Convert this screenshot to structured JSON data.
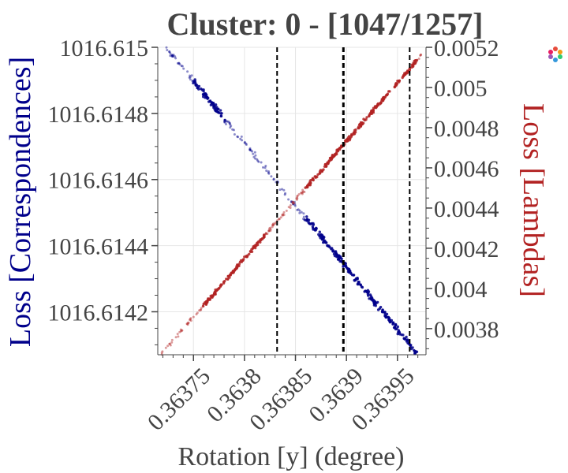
{
  "chart_data": {
    "type": "scatter",
    "title": "Cluster: 0 - [1047/1257]",
    "xlabel": "Rotation [y] (degree)",
    "ylabel_left": "Loss [Correspondences]",
    "ylabel_right": "Loss [Lambdas]",
    "xlim": [
      0.363715,
      0.363978
    ],
    "ylim_left": [
      1016.61407,
      1016.615
    ],
    "ylim_right": [
      0.00367,
      0.0052
    ],
    "x_ticks": [
      0.36375,
      0.3638,
      0.36385,
      0.3639,
      0.36395
    ],
    "x_tick_labels": [
      "0.36375",
      "0.3638",
      "0.36385",
      "0.3639",
      "0.36395"
    ],
    "y_left_ticks": [
      1016.6142,
      1016.6144,
      1016.6146,
      1016.6148,
      1016.615
    ],
    "y_left_tick_labels": [
      "1016.6142",
      "1016.6144",
      "1016.6146",
      "1016.6148",
      "1016.615"
    ],
    "y_right_ticks": [
      0.0038,
      0.004,
      0.0042,
      0.0044,
      0.0046,
      0.0048,
      0.005,
      0.0052
    ],
    "y_right_tick_labels": [
      "0.0038",
      "0.004",
      "0.0042",
      "0.0044",
      "0.0046",
      "0.0048",
      "0.005",
      "0.0052"
    ],
    "vertical_lines": [
      0.363832,
      0.363897,
      0.363962
    ],
    "grid": true,
    "series": [
      {
        "axis": "left",
        "color": "#00008b",
        "x_range": [
          0.363723,
          0.36397
        ],
        "y_range": [
          1016.615,
          1016.61407
        ],
        "dense_x_ranges": [
          [
            0.36375,
            0.36378
          ],
          [
            0.36386,
            0.36397
          ]
        ]
      },
      {
        "axis": "right",
        "color": "#b22222",
        "x_range": [
          0.363718,
          0.363975
        ],
        "y_range": [
          0.00367,
          0.00517
        ],
        "dense_x_ranges": [
          [
            0.36376,
            0.36382
          ],
          [
            0.36386,
            0.36397
          ]
        ]
      }
    ]
  },
  "modebar": {
    "logo_icon": "plotly-logo-icon"
  }
}
